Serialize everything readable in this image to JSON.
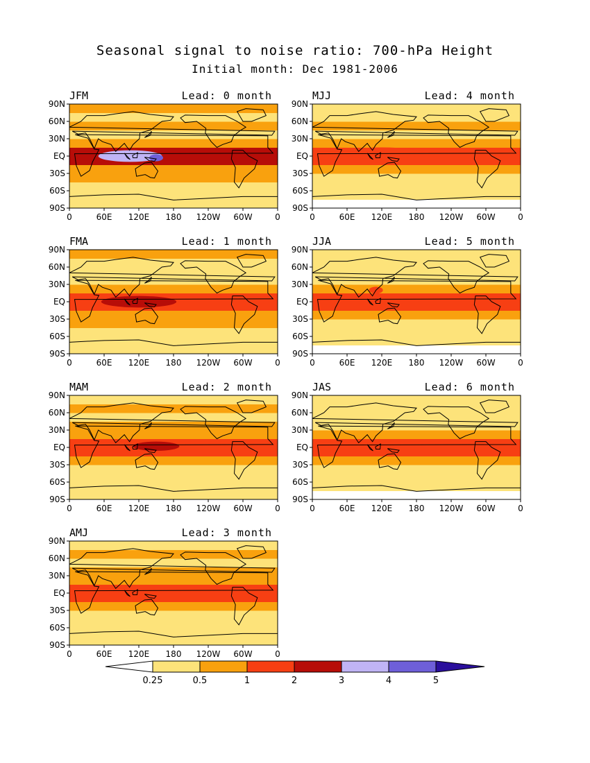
{
  "title": "Seasonal signal to noise ratio: 700-hPa Height",
  "subtitle": "Initial month: Dec 1981-2006",
  "chart_data": {
    "type": "heatmap",
    "variable": "700-hPa Height signal to noise ratio",
    "x_tick_labels": [
      "0",
      "60E",
      "120E",
      "180",
      "120W",
      "60W",
      "0"
    ],
    "y_tick_labels": [
      "90N",
      "60N",
      "30N",
      "EQ",
      "30S",
      "60S",
      "90S"
    ],
    "xlim": [
      0,
      360
    ],
    "ylim": [
      -90,
      90
    ],
    "panels": [
      {
        "season": "JFM",
        "lead": "Lead: 0 month",
        "lead_months": 0,
        "bands": [
          {
            "lat": [
              -90,
              -75
            ],
            "level": 1
          },
          {
            "lat": [
              -75,
              -60
            ],
            "level": 1
          },
          {
            "lat": [
              -60,
              -45
            ],
            "level": 1
          },
          {
            "lat": [
              -45,
              -30
            ],
            "level": 2
          },
          {
            "lat": [
              -30,
              -15
            ],
            "level": 2
          },
          {
            "lat": [
              -15,
              15
            ],
            "level": 4
          },
          {
            "lat": [
              15,
              30
            ],
            "level": 2
          },
          {
            "lat": [
              30,
              45
            ],
            "level": 1
          },
          {
            "lat": [
              45,
              60
            ],
            "level": 2
          },
          {
            "lat": [
              60,
              75
            ],
            "level": 1
          },
          {
            "lat": [
              75,
              90
            ],
            "level": 2
          }
        ],
        "blobs": [
          {
            "lon": 105,
            "lat": 0,
            "rlon": 55,
            "rlat": 10,
            "level": 5
          },
          {
            "lon": 150,
            "lat": -3,
            "rlon": 12,
            "rlat": 6,
            "level": 6
          }
        ]
      },
      {
        "season": "MJJ",
        "lead": "Lead: 4 month",
        "lead_months": 4,
        "bands": [
          {
            "lat": [
              -90,
              -75
            ],
            "level": 0
          },
          {
            "lat": [
              -75,
              -60
            ],
            "level": 1
          },
          {
            "lat": [
              -60,
              -45
            ],
            "level": 1
          },
          {
            "lat": [
              -45,
              -30
            ],
            "level": 1
          },
          {
            "lat": [
              -30,
              -15
            ],
            "level": 2
          },
          {
            "lat": [
              -15,
              15
            ],
            "level": 3
          },
          {
            "lat": [
              15,
              30
            ],
            "level": 2
          },
          {
            "lat": [
              30,
              45
            ],
            "level": 1
          },
          {
            "lat": [
              45,
              60
            ],
            "level": 2
          },
          {
            "lat": [
              60,
              75
            ],
            "level": 1
          },
          {
            "lat": [
              75,
              90
            ],
            "level": 1
          }
        ],
        "blobs": [
          {
            "lon": 120,
            "lat": 5,
            "rlon": 70,
            "rlat": 10,
            "level": 3
          }
        ]
      },
      {
        "season": "FMA",
        "lead": "Lead: 1 month",
        "lead_months": 1,
        "bands": [
          {
            "lat": [
              -90,
              -75
            ],
            "level": 1
          },
          {
            "lat": [
              -75,
              -60
            ],
            "level": 1
          },
          {
            "lat": [
              -60,
              -45
            ],
            "level": 1
          },
          {
            "lat": [
              -45,
              -30
            ],
            "level": 2
          },
          {
            "lat": [
              -30,
              -15
            ],
            "level": 2
          },
          {
            "lat": [
              -15,
              15
            ],
            "level": 3
          },
          {
            "lat": [
              15,
              30
            ],
            "level": 2
          },
          {
            "lat": [
              30,
              45
            ],
            "level": 1
          },
          {
            "lat": [
              45,
              60
            ],
            "level": 1
          },
          {
            "lat": [
              60,
              75
            ],
            "level": 1
          },
          {
            "lat": [
              75,
              90
            ],
            "level": 2
          }
        ],
        "blobs": [
          {
            "lon": 120,
            "lat": 0,
            "rlon": 65,
            "rlat": 10,
            "level": 4
          }
        ]
      },
      {
        "season": "JJA",
        "lead": "Lead: 5 month",
        "lead_months": 5,
        "bands": [
          {
            "lat": [
              -90,
              -75
            ],
            "level": 0
          },
          {
            "lat": [
              -75,
              -60
            ],
            "level": 1
          },
          {
            "lat": [
              -60,
              -45
            ],
            "level": 1
          },
          {
            "lat": [
              -45,
              -30
            ],
            "level": 1
          },
          {
            "lat": [
              -30,
              -15
            ],
            "level": 2
          },
          {
            "lat": [
              -15,
              15
            ],
            "level": 3
          },
          {
            "lat": [
              15,
              30
            ],
            "level": 2
          },
          {
            "lat": [
              30,
              45
            ],
            "level": 1
          },
          {
            "lat": [
              45,
              60
            ],
            "level": 1
          },
          {
            "lat": [
              60,
              75
            ],
            "level": 1
          },
          {
            "lat": [
              75,
              90
            ],
            "level": 1
          }
        ],
        "blobs": [
          {
            "lon": 110,
            "lat": 20,
            "rlon": 12,
            "rlat": 6,
            "level": 3
          }
        ]
      },
      {
        "season": "MAM",
        "lead": "Lead: 2 month",
        "lead_months": 2,
        "bands": [
          {
            "lat": [
              -90,
              -75
            ],
            "level": 1
          },
          {
            "lat": [
              -75,
              -60
            ],
            "level": 1
          },
          {
            "lat": [
              -60,
              -45
            ],
            "level": 1
          },
          {
            "lat": [
              -45,
              -30
            ],
            "level": 1
          },
          {
            "lat": [
              -30,
              -15
            ],
            "level": 2
          },
          {
            "lat": [
              -15,
              15
            ],
            "level": 3
          },
          {
            "lat": [
              15,
              30
            ],
            "level": 2
          },
          {
            "lat": [
              30,
              45
            ],
            "level": 2
          },
          {
            "lat": [
              45,
              60
            ],
            "level": 1
          },
          {
            "lat": [
              60,
              75
            ],
            "level": 2
          },
          {
            "lat": [
              75,
              90
            ],
            "level": 1
          }
        ],
        "blobs": [
          {
            "lon": 150,
            "lat": 2,
            "rlon": 40,
            "rlat": 8,
            "level": 4
          }
        ]
      },
      {
        "season": "JAS",
        "lead": "Lead: 6 month",
        "lead_months": 6,
        "bands": [
          {
            "lat": [
              -90,
              -75
            ],
            "level": 0
          },
          {
            "lat": [
              -75,
              -60
            ],
            "level": 1
          },
          {
            "lat": [
              -60,
              -45
            ],
            "level": 1
          },
          {
            "lat": [
              -45,
              -30
            ],
            "level": 1
          },
          {
            "lat": [
              -30,
              -15
            ],
            "level": 2
          },
          {
            "lat": [
              -15,
              15
            ],
            "level": 3
          },
          {
            "lat": [
              15,
              30
            ],
            "level": 2
          },
          {
            "lat": [
              30,
              45
            ],
            "level": 1
          },
          {
            "lat": [
              45,
              60
            ],
            "level": 1
          },
          {
            "lat": [
              60,
              75
            ],
            "level": 1
          },
          {
            "lat": [
              75,
              90
            ],
            "level": 1
          }
        ],
        "blobs": []
      },
      {
        "season": "AMJ",
        "lead": "Lead: 3 month",
        "lead_months": 3,
        "bands": [
          {
            "lat": [
              -90,
              -75
            ],
            "level": 1
          },
          {
            "lat": [
              -75,
              -60
            ],
            "level": 1
          },
          {
            "lat": [
              -60,
              -45
            ],
            "level": 1
          },
          {
            "lat": [
              -45,
              -30
            ],
            "level": 1
          },
          {
            "lat": [
              -30,
              -15
            ],
            "level": 2
          },
          {
            "lat": [
              -15,
              15
            ],
            "level": 3
          },
          {
            "lat": [
              15,
              30
            ],
            "level": 2
          },
          {
            "lat": [
              30,
              45
            ],
            "level": 2
          },
          {
            "lat": [
              45,
              60
            ],
            "level": 1
          },
          {
            "lat": [
              60,
              75
            ],
            "level": 2
          },
          {
            "lat": [
              75,
              90
            ],
            "level": 1
          }
        ],
        "blobs": []
      }
    ],
    "colorbar": {
      "labels": [
        "0.25",
        "0.5",
        "1",
        "2",
        "3",
        "4",
        "5"
      ],
      "colors": [
        "#ffffff",
        "#fde37a",
        "#f9a10e",
        "#f73f13",
        "#b70d08",
        "#c0b4f5",
        "#6e5fd9",
        "#2a0f9c"
      ]
    }
  }
}
